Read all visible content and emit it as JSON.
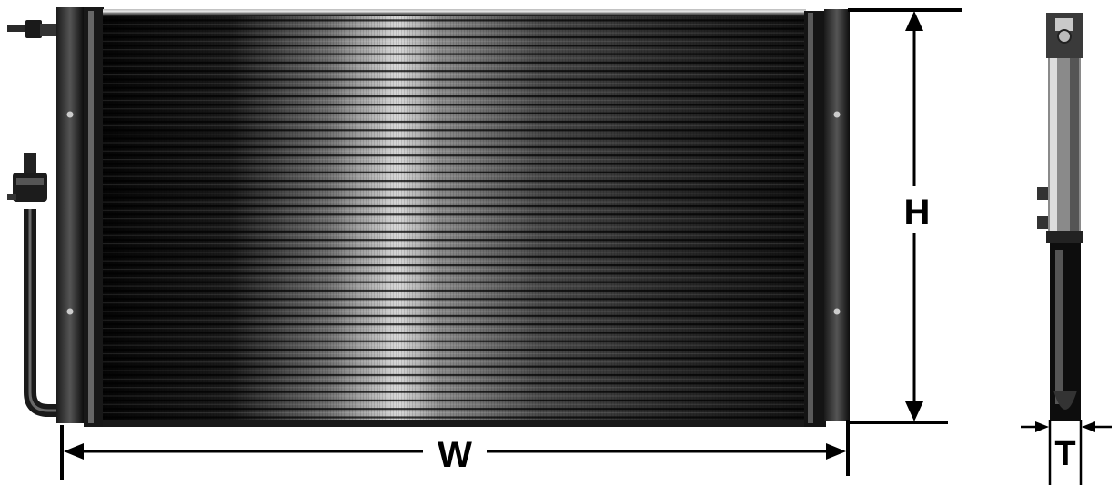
{
  "diagram": {
    "labels": {
      "height": "H",
      "width": "W",
      "thickness": "T"
    },
    "colors": {
      "line": "#000000",
      "fin_dark": "#0c0c0c",
      "fin_light": "#d6d6d6",
      "background": "#ffffff"
    }
  }
}
